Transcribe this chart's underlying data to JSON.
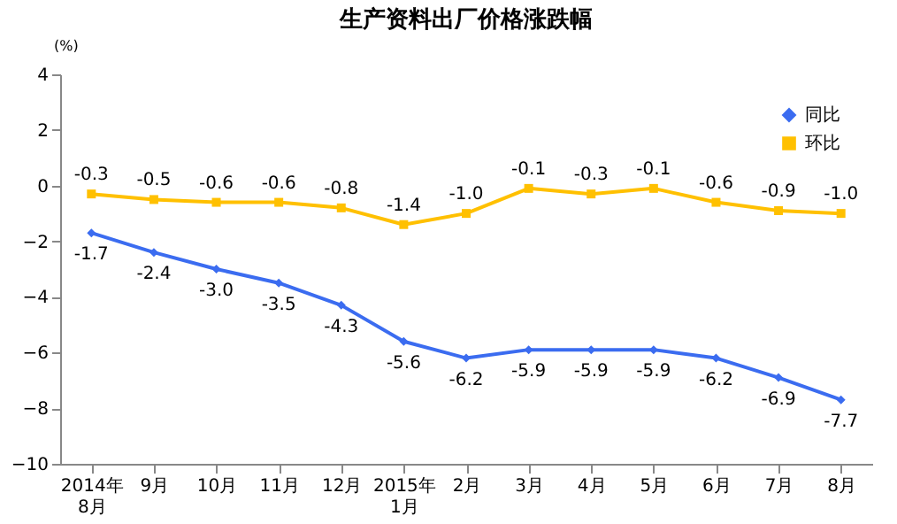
{
  "chart_data": {
    "type": "line",
    "title": "生产资料出厂价格涨跌幅",
    "ylabel": "(%)",
    "categories": [
      "2014年\n8月",
      "9月",
      "10月",
      "11月",
      "12月",
      "2015年\n1月",
      "2月",
      "3月",
      "4月",
      "5月",
      "6月",
      "7月",
      "8月"
    ],
    "series": [
      {
        "name": "同比",
        "color": "#3b6cf0",
        "marker": "diamond",
        "values": [
          -1.7,
          -2.4,
          -3.0,
          -3.5,
          -4.3,
          -5.6,
          -6.2,
          -5.9,
          -5.9,
          -5.9,
          -6.2,
          -6.9,
          -7.7
        ],
        "value_labels": [
          "-1.7",
          "-2.4",
          "-3.0",
          "-3.5",
          "-4.3",
          "-5.6",
          "-6.2",
          "-5.9",
          "-5.9",
          "-5.9",
          "-6.2",
          "-6.9",
          "-7.7"
        ]
      },
      {
        "name": "环比",
        "color": "#ffc000",
        "marker": "square",
        "values": [
          -0.3,
          -0.5,
          -0.6,
          -0.6,
          -0.8,
          -1.4,
          -1.0,
          -0.1,
          -0.3,
          -0.1,
          -0.6,
          -0.9,
          -1.0
        ],
        "value_labels": [
          "-0.3",
          "-0.5",
          "-0.6",
          "-0.6",
          "-0.8",
          "-1.4",
          "-1.0",
          "-0.1",
          "-0.3",
          "-0.1",
          "-0.6",
          "-0.9",
          "-1.0"
        ]
      }
    ],
    "ylim": [
      -10,
      4
    ],
    "yticks": [
      -10,
      -8,
      -6,
      -4,
      -2,
      0,
      2,
      4
    ],
    "grid": false,
    "legend": "top right"
  }
}
